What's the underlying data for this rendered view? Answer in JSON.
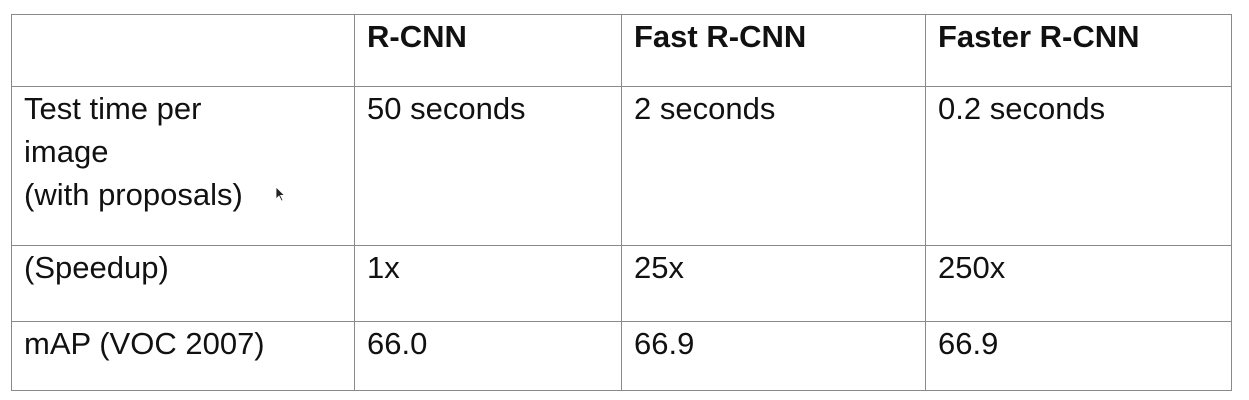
{
  "table": {
    "headers": [
      "",
      "R-CNN",
      "Fast R-CNN",
      "Faster R-CNN"
    ],
    "rows": [
      {
        "label_lines": [
          "Test time per",
          "image",
          "(with proposals)"
        ],
        "values": [
          "50 seconds",
          "2 seconds",
          "0.2 seconds"
        ],
        "bold": [
          false,
          false,
          true
        ]
      },
      {
        "label_lines": [
          "(Speedup)"
        ],
        "values": [
          "1x",
          "25x",
          "250x"
        ],
        "bold": [
          false,
          false,
          true
        ]
      },
      {
        "label_lines": [
          "mAP (VOC 2007)"
        ],
        "values": [
          "66.0",
          "66.9",
          "66.9"
        ],
        "bold": [
          false,
          true,
          true
        ]
      }
    ]
  },
  "icons": {
    "cursor": "mouse-pointer-icon"
  }
}
